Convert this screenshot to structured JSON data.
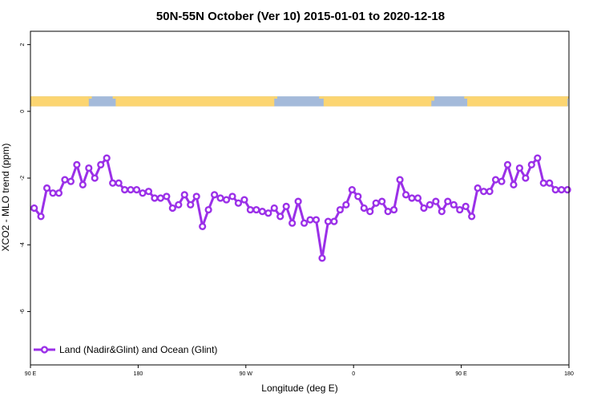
{
  "chart_data": {
    "type": "line",
    "title": "50N-55N October (Ver 10)   2015-01-01 to 2020-12-18",
    "xlabel": "Longitude (deg E)",
    "ylabel": "XCO2 - MLO trend (ppm)",
    "xlim": [
      90,
      450
    ],
    "ylim": [
      -7.6,
      2.4
    ],
    "x_ticks": [
      {
        "value": 90,
        "label": "90 E"
      },
      {
        "value": 162,
        "label": "180"
      },
      {
        "value": 234,
        "label": "90 W"
      },
      {
        "value": 306,
        "label": "0"
      },
      {
        "value": 378,
        "label": "90 E"
      },
      {
        "value": 450,
        "label": "180"
      }
    ],
    "y_ticks": [
      {
        "value": 2,
        "label": "2"
      },
      {
        "value": 0,
        "label": "0"
      },
      {
        "value": -2,
        "label": "-2"
      },
      {
        "value": -4,
        "label": "-4"
      },
      {
        "value": -6,
        "label": "-6"
      }
    ],
    "grid": false,
    "legend_position": "bottom-left",
    "surface_band": {
      "y_range": [
        0.15,
        0.45
      ],
      "land_color": "#fcd571",
      "ocean_color": "#a4bada",
      "land_segments": [
        [
          90,
          129
        ],
        [
          147,
          253
        ],
        [
          286,
          358
        ],
        [
          382,
          449
        ]
      ],
      "land_tips": [
        [
          129,
          131,
          0.38
        ],
        [
          145,
          147,
          0.38
        ],
        [
          253,
          255,
          0.38
        ],
        [
          283,
          286,
          0.38
        ],
        [
          358,
          360,
          0.32
        ],
        [
          380,
          382,
          0.38
        ],
        [
          449,
          450,
          0.38
        ]
      ]
    },
    "series": [
      {
        "name": "Land (Nadir&Glint) and Ocean (Glint)",
        "color": "#9b30e8",
        "x": [
          92.5,
          97,
          101,
          105,
          109,
          113,
          117,
          121,
          125,
          129,
          133,
          137,
          141,
          145,
          149,
          153,
          157,
          161,
          165,
          169,
          173,
          177,
          181,
          185,
          189,
          193,
          197,
          201,
          205,
          209,
          213,
          217,
          221,
          225,
          229,
          233,
          237,
          241,
          245,
          249,
          253,
          257,
          261,
          265,
          269,
          273,
          277,
          281,
          285,
          289,
          293,
          297,
          301,
          305,
          309,
          313,
          317,
          321,
          325,
          329,
          333,
          337,
          341,
          345,
          349,
          353,
          357,
          361,
          365,
          369,
          373,
          377,
          381,
          385,
          389,
          393,
          397,
          401,
          405,
          409,
          413,
          417,
          421,
          425,
          429,
          433,
          437,
          441,
          445,
          449
        ],
        "y": [
          -2.9,
          -3.15,
          -2.3,
          -2.45,
          -2.45,
          -2.05,
          -2.1,
          -1.6,
          -2.2,
          -1.7,
          -2.0,
          -1.6,
          -1.4,
          -2.15,
          -2.15,
          -2.35,
          -2.35,
          -2.35,
          -2.45,
          -2.4,
          -2.6,
          -2.6,
          -2.55,
          -2.9,
          -2.8,
          -2.5,
          -2.8,
          -2.55,
          -3.45,
          -2.95,
          -2.5,
          -2.6,
          -2.65,
          -2.55,
          -2.75,
          -2.65,
          -2.95,
          -2.95,
          -3.0,
          -3.05,
          -2.9,
          -3.15,
          -2.85,
          -3.35,
          -2.7,
          -3.35,
          -3.25,
          -3.25,
          -4.4,
          -3.3,
          -3.3,
          -2.95,
          -2.8,
          -2.35,
          -2.55,
          -2.9,
          -3.0,
          -2.75,
          -2.7,
          -3.0,
          -2.95,
          -2.05,
          -2.5,
          -2.6,
          -2.6,
          -2.9,
          -2.8,
          -2.7,
          -3.0,
          -2.7,
          -2.8,
          -2.95,
          -2.85,
          -3.15,
          -2.3,
          -2.4,
          -2.4,
          -2.05,
          -2.1,
          -1.6,
          -2.2,
          -1.7,
          -2.0,
          -1.6,
          -1.4,
          -2.15,
          -2.15,
          -2.35,
          -2.35,
          -2.35
        ]
      }
    ]
  }
}
